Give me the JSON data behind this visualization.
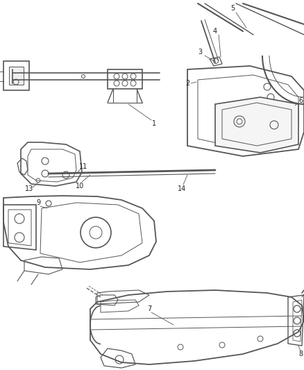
{
  "bg_color": "#ffffff",
  "line_color": "#555555",
  "text_color": "#222222",
  "fig_width": 4.38,
  "fig_height": 5.33,
  "dpi": 100
}
